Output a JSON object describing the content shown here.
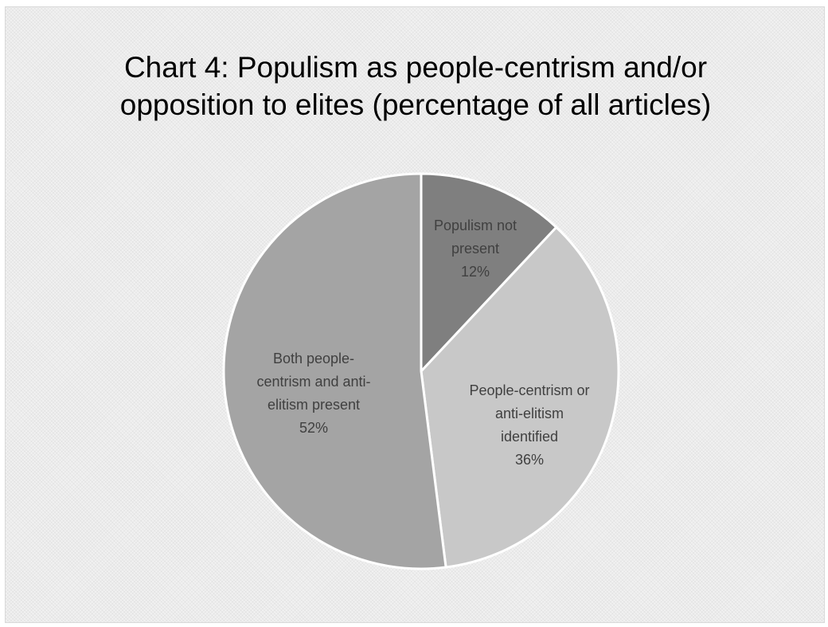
{
  "chart_data": {
    "type": "pie",
    "title": "Chart 4: Populism as people-centrism and/or opposition to elites (percentage of all articles)",
    "title_lines": [
      "Chart 4: Populism as people-centrism and/or",
      "opposition to elites (percentage of all articles)"
    ],
    "slices": [
      {
        "label": "Populism not present",
        "label_lines": [
          "Populism not",
          "present"
        ],
        "value": 12,
        "value_label": "12%",
        "color": "#7f7f7f"
      },
      {
        "label": "People-centrism or anti-elitism identified",
        "label_lines": [
          "People-centrism or",
          "anti-elitism",
          "identified"
        ],
        "value": 36,
        "value_label": "36%",
        "color": "#c8c8c8"
      },
      {
        "label": "Both people-centrism and anti-elitism present",
        "label_lines": [
          "Both people-",
          "centrism and anti-",
          "elitism present"
        ],
        "value": 52,
        "value_label": "52%",
        "color": "#a4a4a4"
      }
    ],
    "start_angle_deg": 0,
    "direction": "clockwise",
    "slice_border_color": "#ffffff",
    "legend": "none"
  }
}
